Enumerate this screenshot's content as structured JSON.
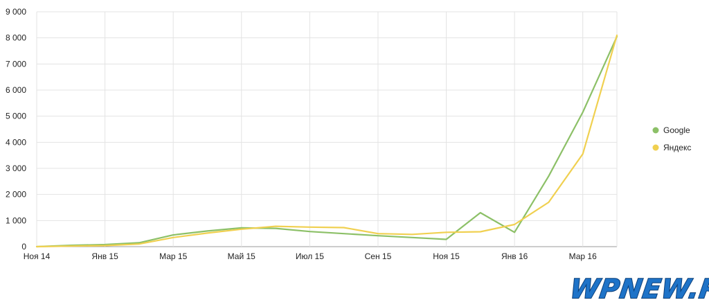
{
  "chart_data": {
    "type": "line",
    "title": "",
    "xlabel": "",
    "ylabel": "",
    "x": [
      "Ноя 14",
      "Дек 14",
      "Янв 15",
      "Фев 15",
      "Мар 15",
      "Апр 15",
      "Май 15",
      "Июн 15",
      "Июл 15",
      "Авг 15",
      "Сен 15",
      "Окт 15",
      "Ноя 15",
      "Дек 15",
      "Янв 16",
      "Фев 16",
      "Мар 16",
      "Апр 16"
    ],
    "x_tick_labels": [
      "Ноя 14",
      "Янв 15",
      "Мар 15",
      "Май 15",
      "Июл 15",
      "Сен 15",
      "Ноя 15",
      "Янв 16",
      "Мар 16"
    ],
    "ylim": [
      0,
      9000
    ],
    "y_ticks": [
      0,
      1000,
      2000,
      3000,
      4000,
      5000,
      6000,
      7000,
      8000,
      9000
    ],
    "y_tick_labels": [
      "0",
      "1 000",
      "2 000",
      "3 000",
      "4 000",
      "5 000",
      "6 000",
      "7 000",
      "8 000",
      "9 000"
    ],
    "grid": true,
    "legend_position": "right",
    "series": [
      {
        "name": "Google",
        "color": "#8cc067",
        "values": [
          0,
          50,
          80,
          150,
          450,
          600,
          720,
          700,
          580,
          500,
          420,
          350,
          280,
          1300,
          550,
          2700,
          5150,
          8050
        ]
      },
      {
        "name": "Яндекс",
        "color": "#f0d050",
        "values": [
          0,
          20,
          40,
          100,
          350,
          520,
          670,
          780,
          750,
          730,
          500,
          470,
          550,
          570,
          850,
          1700,
          3550,
          8100
        ]
      }
    ]
  },
  "watermark": {
    "text": "WPNEW.RU",
    "color_fill": "#1e73c8",
    "color_outline": "#0b3e78"
  }
}
